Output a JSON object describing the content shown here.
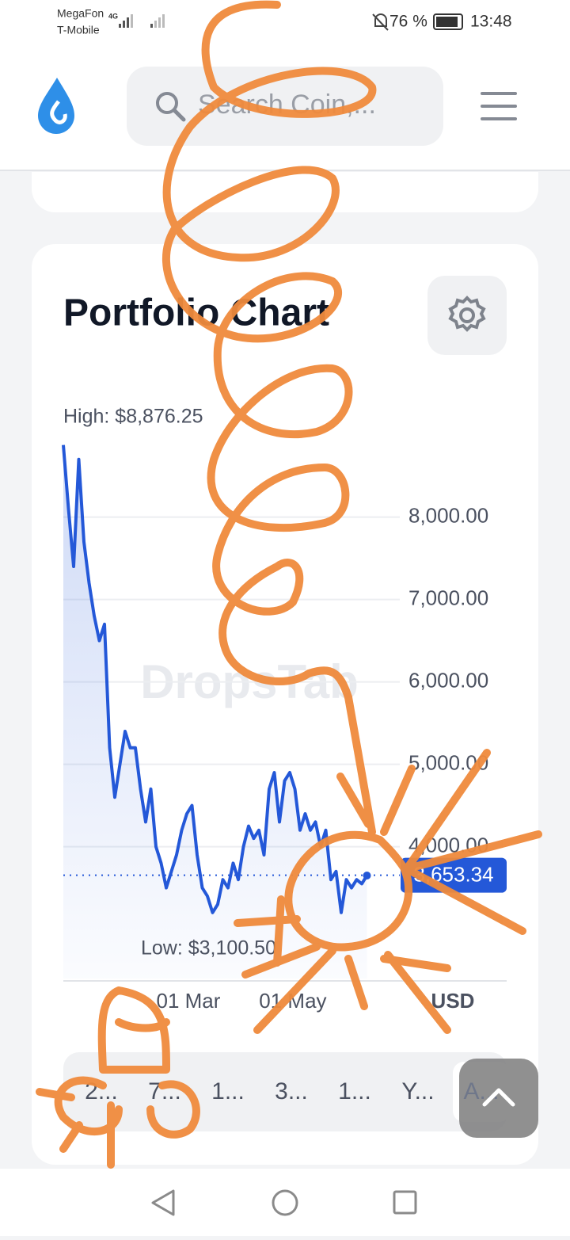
{
  "status_bar": {
    "carrier_1": "MegaFon",
    "carrier_2": "T-Mobile",
    "network": "4G",
    "battery": "76 %",
    "time": "13:48"
  },
  "header": {
    "search_placeholder": "Search Coin,..."
  },
  "portfolio": {
    "title": "Portfolio Chart",
    "high_label": "High: $8,876.25",
    "low_label": "Low: $3,100.50",
    "watermark": "DropsTab",
    "currency": "USD",
    "chart": {
      "type": "line",
      "color": "#2458d8",
      "values": [
        8875,
        8100,
        7400,
        8700,
        7700,
        7200,
        6800,
        6500,
        6700,
        5200,
        4600,
        5000,
        5400,
        5200,
        5200,
        4700,
        4300,
        4700,
        4000,
        3800,
        3500,
        3700,
        3900,
        4200,
        4400,
        4500,
        3900,
        3500,
        3400,
        3200,
        3300,
        3600,
        3500,
        3800,
        3600,
        4000,
        4250,
        4100,
        4200,
        3900,
        4700,
        4900,
        4300,
        4800,
        4900,
        4700,
        4200,
        4400,
        4200,
        4300,
        4000,
        4200,
        3600,
        3700,
        3200,
        3600,
        3500,
        3600,
        3550,
        3650
      ],
      "xlim": [
        0,
        65
      ],
      "xticks": [
        {
          "value": 24.3,
          "label": "01 Mar"
        },
        {
          "value": 44.6,
          "label": "01 May"
        }
      ],
      "ylim": [
        2400,
        8900
      ],
      "yticks": [
        {
          "value": 4000,
          "label": "4,000.00"
        },
        {
          "value": 5000,
          "label": "5,000.00"
        },
        {
          "value": 6000,
          "label": "6,000.00"
        },
        {
          "value": 7000,
          "label": "7,000.00"
        },
        {
          "value": 8000,
          "label": "8,000.00"
        }
      ],
      "grid": true,
      "current": {
        "value": 3653.34,
        "label": "3,653.34"
      }
    },
    "ranges": [
      "2...",
      "7...",
      "1...",
      "3...",
      "1...",
      "Y...",
      "A..."
    ],
    "selected_range": 6
  }
}
